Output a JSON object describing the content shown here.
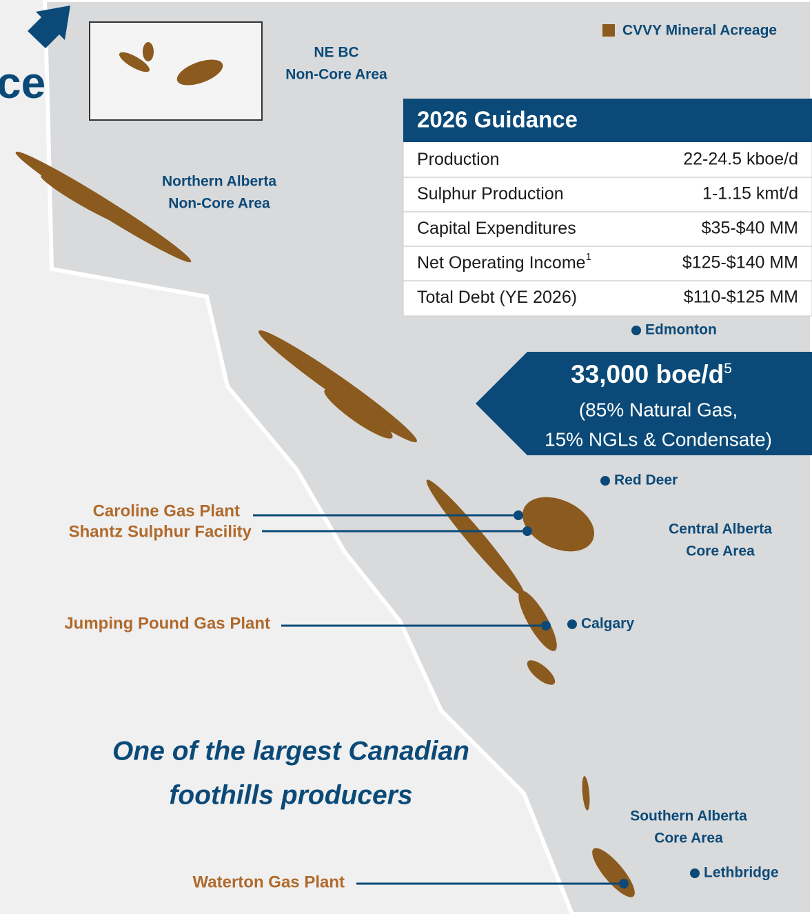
{
  "title_fragment": "ce",
  "legend": "CVVY Mineral Acreage",
  "areas": [
    {
      "lines": [
        "NE BC",
        "Non-Core Area"
      ]
    },
    {
      "lines": [
        "Northern Alberta",
        "Non-Core Area"
      ]
    },
    {
      "lines": [
        "Central Alberta",
        "Core Area"
      ]
    },
    {
      "lines": [
        "Southern Alberta",
        "Core Area"
      ]
    }
  ],
  "guidance": {
    "title": "2026 Guidance",
    "rows": [
      {
        "label": "Production",
        "value": "22-24.5 kboe/d"
      },
      {
        "label": "Sulphur Production",
        "value": "1-1.15 kmt/d"
      },
      {
        "label": "Capital Expenditures",
        "value": "$35-$40 MM"
      },
      {
        "label": "Net Operating Income",
        "sup": "1",
        "value": "$125-$140 MM"
      },
      {
        "label": "Total Debt (YE 2026)",
        "value": "$110-$125 MM"
      }
    ]
  },
  "callout": {
    "headline": "33,000 boe/d",
    "sup": "5",
    "lines": [
      "(85% Natural Gas,",
      "15% NGLs & Condensate)"
    ]
  },
  "cities": [
    "Edmonton",
    "Red Deer",
    "Calgary",
    "Lethbridge"
  ],
  "facilities": [
    "Caroline Gas Plant",
    "Shantz Sulphur Facility",
    "Jumping Pound Gas Plant",
    "Waterton Gas Plant"
  ],
  "tagline": [
    "One of the largest Canadian",
    "foothills producers"
  ]
}
